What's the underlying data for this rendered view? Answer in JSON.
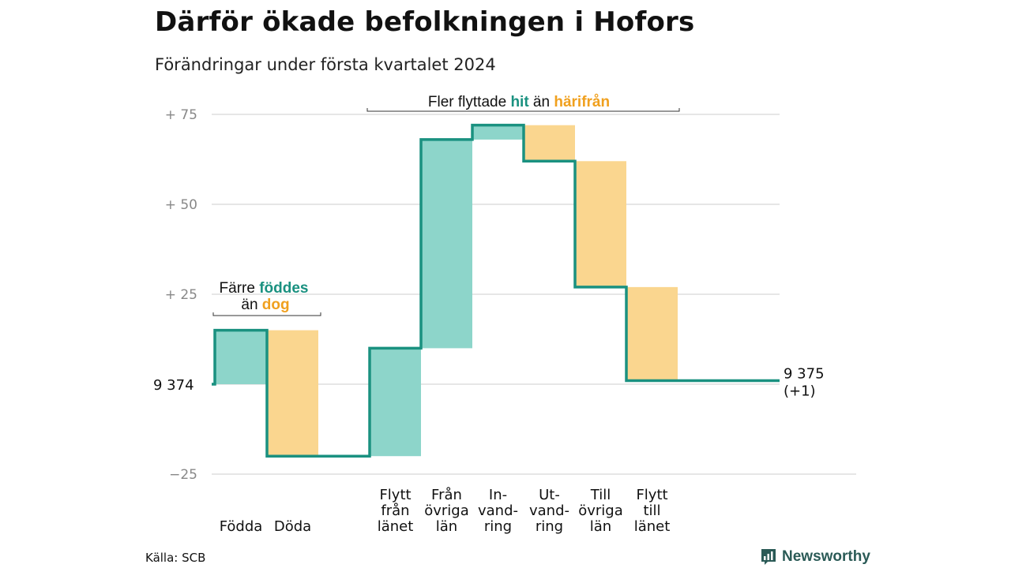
{
  "title": "Därför ökade befolkningen i Hofors",
  "subtitle": "Förändringar under första kvartalet 2024",
  "source": "Källa: SCB",
  "brand": "Newsworthy",
  "colors": {
    "increase_fill": "#8dd5ca",
    "decrease_fill": "#fad68f",
    "line": "#1a9180",
    "hit_text": "#1a9180",
    "orange_text": "#f0a01e",
    "grid": "#dddddd",
    "axis_label": "#888888"
  },
  "annotations": {
    "births": {
      "line1_prefix": "Färre",
      "line1_highlight": "föddes",
      "line2_prefix": "än",
      "line2_highlight": "dog"
    },
    "migration": {
      "prefix": "Fler flyttade",
      "highlight1": "hit",
      "middle": "än",
      "highlight2": "härifrån"
    }
  },
  "chart_data": {
    "type": "waterfall",
    "baseline_label": "9 374",
    "end_label_line1": "9 375",
    "end_label_line2": "(+1)",
    "y_ticks": [
      {
        "value": 75,
        "label": "+ 75"
      },
      {
        "value": 50,
        "label": "+ 50"
      },
      {
        "value": 25,
        "label": "+ 25"
      },
      {
        "value": 0,
        "label": ""
      },
      {
        "value": -25,
        "label": "−25"
      }
    ],
    "ylim": [
      -25,
      75
    ],
    "steps": [
      {
        "category_lines": [
          "Födda"
        ],
        "delta": 15,
        "kind": "increase"
      },
      {
        "category_lines": [
          "Döda"
        ],
        "delta": -35,
        "kind": "decrease"
      },
      {
        "category_lines": [],
        "delta": 0,
        "kind": "gap"
      },
      {
        "category_lines": [
          "Flytt",
          "från",
          "länet"
        ],
        "delta": 30,
        "kind": "increase"
      },
      {
        "category_lines": [
          "Från",
          "övriga",
          "län"
        ],
        "delta": 58,
        "kind": "increase"
      },
      {
        "category_lines": [
          "In-",
          "vand-",
          "ring"
        ],
        "delta": 4,
        "kind": "increase"
      },
      {
        "category_lines": [
          "Ut-",
          "vand-",
          "ring"
        ],
        "delta": -10,
        "kind": "decrease"
      },
      {
        "category_lines": [
          "Till",
          "övriga",
          "län"
        ],
        "delta": -35,
        "kind": "decrease"
      },
      {
        "category_lines": [
          "Flytt",
          "till",
          "länet"
        ],
        "delta": -26,
        "kind": "decrease"
      }
    ],
    "end_change": 1
  }
}
